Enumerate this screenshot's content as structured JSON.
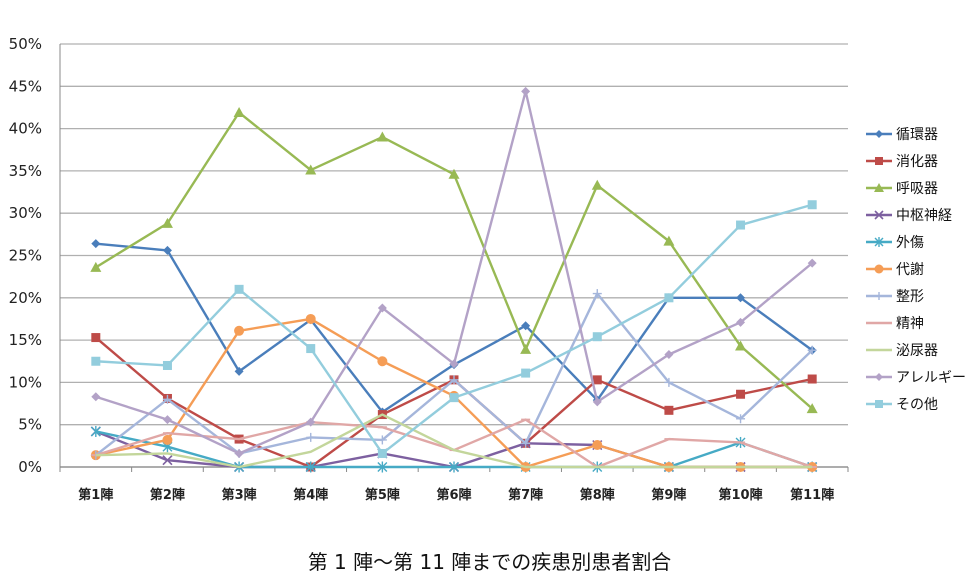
{
  "caption": "第 1 陣〜第 11 陣までの疾患別患者割合",
  "chart_data": {
    "type": "line",
    "title": "第 1 陣〜第 11 陣までの疾患別患者割合",
    "xlabel": "",
    "ylabel": "",
    "ylim": [
      0,
      50
    ],
    "yticks": [
      "0%",
      "5%",
      "10%",
      "15%",
      "20%",
      "25%",
      "30%",
      "35%",
      "40%",
      "45%",
      "50%"
    ],
    "grid": true,
    "legend_position": "right",
    "categories": [
      "第1陣",
      "第2陣",
      "第3陣",
      "第4陣",
      "第5陣",
      "第6陣",
      "第7陣",
      "第8陣",
      "第9陣",
      "第10陣",
      "第11陣"
    ],
    "series": [
      {
        "name": "循環器",
        "color": "#4a7ebb",
        "marker": "diamond",
        "values": [
          26.4,
          25.6,
          11.3,
          17.4,
          6.5,
          12.1,
          16.7,
          7.9,
          20.0,
          20.0,
          13.8
        ]
      },
      {
        "name": "消化器",
        "color": "#be4b48",
        "marker": "square",
        "values": [
          15.3,
          8.1,
          3.3,
          0,
          6.2,
          10.3,
          2.8,
          10.3,
          6.7,
          8.6,
          10.4
        ]
      },
      {
        "name": "呼吸器",
        "color": "#98b954",
        "marker": "triangle",
        "values": [
          23.6,
          28.8,
          41.9,
          35.1,
          39.0,
          34.6,
          13.9,
          33.3,
          26.7,
          14.3,
          6.9
        ]
      },
      {
        "name": "中枢神経",
        "color": "#7d60a0",
        "marker": "x",
        "values": [
          4.2,
          0.8,
          0,
          0,
          1.6,
          0,
          2.8,
          2.6,
          0,
          0,
          0
        ]
      },
      {
        "name": "外傷",
        "color": "#46aac5",
        "marker": "star",
        "values": [
          4.2,
          2.4,
          0,
          0,
          0,
          0,
          0,
          0,
          0,
          2.9,
          0
        ]
      },
      {
        "name": "代謝",
        "color": "#f59d56",
        "marker": "circle",
        "values": [
          1.4,
          3.2,
          16.1,
          17.5,
          12.5,
          8.4,
          0,
          2.6,
          0,
          0,
          0
        ]
      },
      {
        "name": "整形",
        "color": "#a5b6db",
        "marker": "plus",
        "values": [
          1.4,
          8.0,
          1.6,
          3.5,
          3.2,
          10.3,
          2.8,
          20.5,
          10.0,
          5.7,
          13.8
        ]
      },
      {
        "name": "精神",
        "color": "#e0a7a6",
        "marker": "dash",
        "values": [
          1.4,
          4.0,
          3.3,
          5.3,
          4.7,
          2.0,
          5.6,
          0,
          3.3,
          2.9,
          0
        ]
      },
      {
        "name": "泌尿器",
        "color": "#c3d69b",
        "marker": "none",
        "values": [
          1.4,
          1.6,
          0,
          1.8,
          6.2,
          2.0,
          0,
          0,
          0,
          0,
          0
        ]
      },
      {
        "name": "アレルギー",
        "color": "#b3a2c7",
        "marker": "diamond",
        "values": [
          8.3,
          5.6,
          1.6,
          5.3,
          18.8,
          12.2,
          44.4,
          7.7,
          13.3,
          17.1,
          24.1
        ]
      },
      {
        "name": "その他",
        "color": "#93cddd",
        "marker": "square",
        "values": [
          12.5,
          12.0,
          21.0,
          14.0,
          1.6,
          8.2,
          11.1,
          15.4,
          20.0,
          28.6,
          31.0
        ]
      }
    ]
  }
}
